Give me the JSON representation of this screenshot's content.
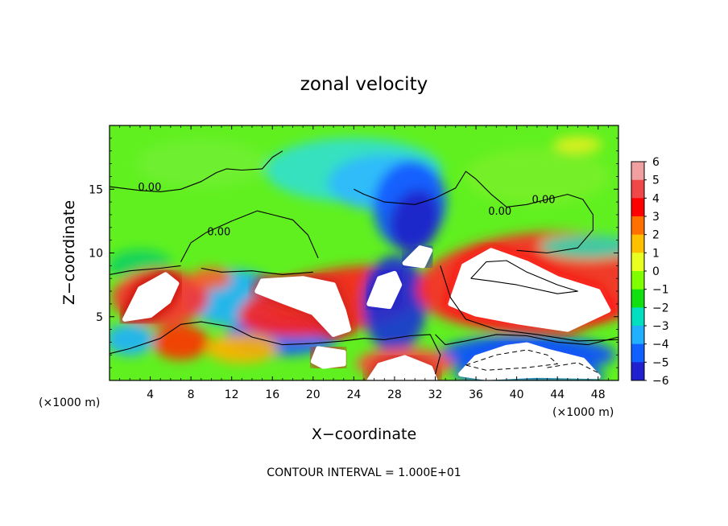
{
  "chart_data": {
    "type": "heatmap",
    "title": "zonal velocity",
    "xlabel": "X−coordinate",
    "ylabel": "Z−coordinate",
    "x_unit_left": "(×1000 m)",
    "x_unit_right": "(×1000 m)",
    "xlim": [
      0,
      50
    ],
    "ylim": [
      0,
      20
    ],
    "xticks": [
      4,
      8,
      12,
      16,
      20,
      24,
      28,
      32,
      36,
      40,
      44,
      48
    ],
    "yticks": [
      5,
      10,
      15
    ],
    "colorbar": {
      "levels": [
        6,
        5,
        4,
        3,
        2,
        1,
        0,
        -1,
        -2,
        -3,
        -4,
        -5,
        -6
      ],
      "labels": [
        "6",
        "5",
        "4",
        "3",
        "2",
        "1",
        "0",
        "−1",
        "−2",
        "−3",
        "−4",
        "−5",
        "−6"
      ],
      "colors": [
        "#f0a0a0",
        "#f04848",
        "#ff0000",
        "#ff7000",
        "#ffc000",
        "#e8ff20",
        "#80ff00",
        "#10e010",
        "#00e0c0",
        "#20b0ff",
        "#1060ff",
        "#2020d0",
        "#6000b0"
      ]
    },
    "field_regions": [
      {
        "kind": "saturated_positive",
        "center": [
          4.5,
          6.8
        ],
        "value": 12
      },
      {
        "kind": "saturated_positive",
        "center": [
          18.5,
          6.2
        ],
        "value": 12
      },
      {
        "kind": "saturated_positive",
        "center": [
          27.2,
          6.5
        ],
        "value": 12
      },
      {
        "kind": "saturated_positive",
        "center": [
          30.2,
          9.8
        ],
        "value": 12
      },
      {
        "kind": "saturated_positive",
        "center": [
          42.5,
          6.5
        ],
        "value": 12
      },
      {
        "kind": "saturated_positive",
        "center": [
          21.0,
          1.4
        ],
        "value": 12
      },
      {
        "kind": "saturated_positive",
        "center": [
          29.0,
          0.5
        ],
        "value": 12
      },
      {
        "kind": "saturated_negative_region",
        "center": [
          41.0,
          1.5
        ],
        "value": 12
      },
      {
        "kind": "positive",
        "center": [
          22.0,
          6.0
        ],
        "value": 4
      },
      {
        "kind": "positive",
        "center": [
          41.0,
          7.8
        ],
        "value": 4
      },
      {
        "kind": "positive",
        "center": [
          7.5,
          3.0
        ],
        "value": 3
      },
      {
        "kind": "negative",
        "center": [
          29.5,
          13.8
        ],
        "value": -5
      },
      {
        "kind": "negative",
        "center": [
          28.0,
          6.0
        ],
        "value": -5
      },
      {
        "kind": "negative",
        "center": [
          17.0,
          3.6
        ],
        "value": -4
      },
      {
        "kind": "negative",
        "center": [
          12.0,
          6.5
        ],
        "value": -3
      },
      {
        "kind": "negative",
        "center": [
          26.0,
          16.0
        ],
        "value": -3
      },
      {
        "kind": "negative",
        "center": [
          42.0,
          1.2
        ],
        "value": -4
      }
    ],
    "contours": [
      {
        "label": "0.00",
        "x": 2.8,
        "y": 14.9
      },
      {
        "label": "0.00",
        "x": 9.6,
        "y": 11.4
      },
      {
        "label": "0.00",
        "x": 37.2,
        "y": 13.0
      },
      {
        "label": "0.00",
        "x": 41.5,
        "y": 13.9
      }
    ]
  },
  "footer": {
    "contour_interval": "CONTOUR INTERVAL = 1.000E+01"
  }
}
